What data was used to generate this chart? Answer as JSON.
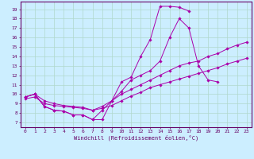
{
  "xlabel": "Windchill (Refroidissement éolien,°C)",
  "background_color": "#cceeff",
  "grid_color": "#b0d8cc",
  "line_color": "#aa00aa",
  "xlim": [
    -0.5,
    23.5
  ],
  "ylim": [
    6.5,
    19.8
  ],
  "yticks": [
    7,
    8,
    9,
    10,
    11,
    12,
    13,
    14,
    15,
    16,
    17,
    18,
    19
  ],
  "xticks": [
    0,
    1,
    2,
    3,
    4,
    5,
    6,
    7,
    8,
    9,
    10,
    11,
    12,
    13,
    14,
    15,
    16,
    17,
    18,
    19,
    20,
    21,
    22,
    23
  ],
  "series": [
    {
      "x": [
        0,
        1,
        2,
        3,
        4,
        5,
        6,
        7,
        8,
        9,
        10,
        11,
        12,
        13,
        14,
        15,
        16,
        17
      ],
      "y": [
        9.7,
        10.0,
        8.7,
        8.3,
        8.2,
        7.8,
        7.8,
        7.3,
        8.3,
        9.3,
        11.3,
        11.8,
        14.0,
        15.8,
        19.3,
        19.3,
        19.2,
        18.8
      ]
    },
    {
      "x": [
        0,
        1,
        2,
        3,
        4,
        5,
        6,
        7,
        8,
        9,
        10,
        11,
        12,
        13,
        14,
        15,
        16,
        17,
        18,
        19,
        20
      ],
      "y": [
        9.7,
        10.0,
        8.7,
        8.3,
        8.2,
        7.8,
        7.8,
        7.3,
        7.3,
        9.3,
        10.3,
        11.5,
        12.0,
        12.5,
        13.5,
        16.0,
        18.0,
        17.0,
        13.0,
        11.5,
        11.3
      ]
    },
    {
      "x": [
        0,
        1,
        2,
        3,
        4,
        5,
        6,
        7,
        8,
        9,
        10,
        11,
        12,
        13,
        14,
        15,
        16,
        17,
        18,
        19,
        20,
        21,
        22,
        23
      ],
      "y": [
        9.7,
        10.0,
        9.3,
        9.0,
        8.8,
        8.7,
        8.6,
        8.3,
        8.7,
        9.3,
        10.0,
        10.5,
        11.0,
        11.5,
        12.0,
        12.5,
        13.0,
        13.3,
        13.5,
        14.0,
        14.3,
        14.8,
        15.2,
        15.5
      ]
    },
    {
      "x": [
        0,
        1,
        2,
        3,
        4,
        5,
        6,
        7,
        8,
        9,
        10,
        11,
        12,
        13,
        14,
        15,
        16,
        17,
        18,
        19,
        20,
        21,
        22,
        23
      ],
      "y": [
        9.5,
        9.7,
        9.0,
        8.8,
        8.7,
        8.6,
        8.5,
        8.3,
        8.5,
        8.8,
        9.3,
        9.8,
        10.2,
        10.7,
        11.0,
        11.3,
        11.6,
        11.9,
        12.2,
        12.5,
        12.8,
        13.2,
        13.5,
        13.8
      ]
    }
  ]
}
